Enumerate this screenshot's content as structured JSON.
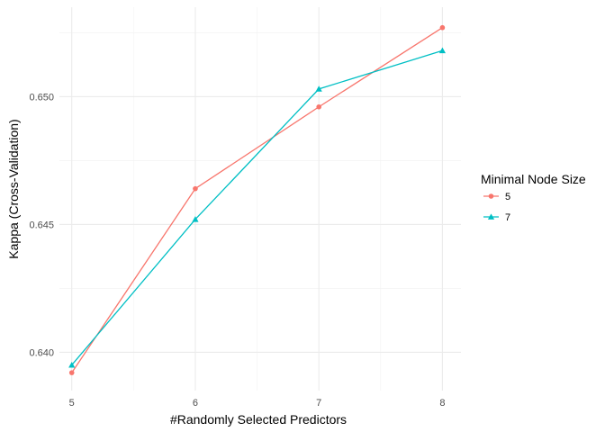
{
  "chart_data": {
    "type": "line",
    "title": "",
    "xlabel": "#Randomly Selected Predictors",
    "ylabel": "Kappa (Cross-Validation)",
    "x": [
      5,
      6,
      7,
      8
    ],
    "xlim": [
      4.9,
      8.15
    ],
    "ylim": [
      0.6385,
      0.6535
    ],
    "x_ticks": [
      5,
      6,
      7,
      8
    ],
    "x_tick_labels": [
      "5",
      "6",
      "7",
      "8"
    ],
    "y_ticks": [
      0.64,
      0.645,
      0.65
    ],
    "y_tick_labels": [
      "0.640",
      "0.645",
      "0.650"
    ],
    "grid": true,
    "legend": {
      "title": "Minimal Node Size",
      "position": "right"
    },
    "series": [
      {
        "name": "5",
        "marker": "circle",
        "color": "#F8766D",
        "values": [
          0.6392,
          0.6464,
          0.6496,
          0.6527
        ]
      },
      {
        "name": "7",
        "marker": "triangle",
        "color": "#00BFC4",
        "values": [
          0.6395,
          0.6452,
          0.6503,
          0.6518
        ]
      }
    ]
  }
}
